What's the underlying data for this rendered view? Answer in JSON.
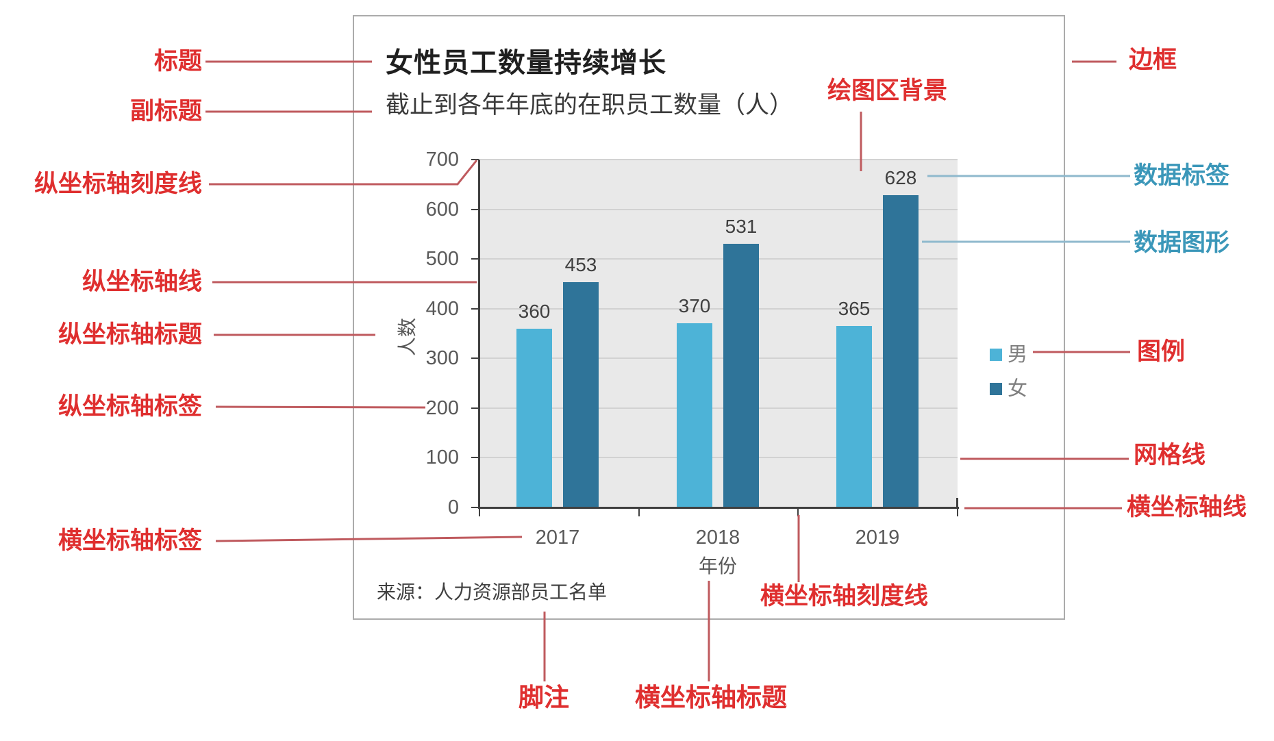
{
  "chart": {
    "title": "女性员工数量持续增长",
    "subtitle": "截止到各年年底的在职员工数量（人）",
    "footnote": "来源：人力资源部员工名单",
    "y_axis_title": "人数",
    "x_axis_title": "年份"
  },
  "chart_data": {
    "type": "bar",
    "title": "女性员工数量持续增长",
    "subtitle": "截止到各年年底的在职员工数量（人）",
    "categories": [
      "2017",
      "2018",
      "2019"
    ],
    "series": [
      {
        "name": "男",
        "color": "#4db3d7",
        "values": [
          360,
          370,
          365
        ]
      },
      {
        "name": "女",
        "color": "#2f7499",
        "values": [
          453,
          531,
          628
        ]
      }
    ],
    "xlabel": "年份",
    "ylabel": "人数",
    "ylim": [
      0,
      700
    ],
    "y_ticks": [
      0,
      100,
      200,
      300,
      400,
      500,
      600,
      700
    ],
    "grid": true,
    "data_labels": true,
    "legend_position": "right",
    "plot_background": "#e9e9e9",
    "source_note": "来源：人力资源部员工名单"
  },
  "annotations": {
    "title": "标题",
    "subtitle": "副标题",
    "y_tick": "纵坐标轴刻度线",
    "y_axis_line": "纵坐标轴线",
    "y_axis_title": "纵坐标轴标题",
    "y_axis_labels": "纵坐标轴标签",
    "x_axis_labels": "横坐标轴标签",
    "footnote": "脚注",
    "x_axis_title": "横坐标轴标题",
    "x_tick": "横坐标轴刻度线",
    "plot_bg": "绘图区背景",
    "border": "边框",
    "data_label": "数据标签",
    "data_shape": "数据图形",
    "legend": "图例",
    "gridline": "网格线",
    "x_axis_line": "横坐标轴线"
  },
  "colors": {
    "annotation_red": "#df2f2f",
    "annotation_teal": "#3b97b9",
    "leader_red": "#bf5a5e",
    "leader_blue": "#8fb9cd",
    "series_male": "#4db3d7",
    "series_female": "#2f7499",
    "plot_background": "#e9e9e9",
    "frame_border": "#ababab",
    "axis_line": "#404040"
  }
}
